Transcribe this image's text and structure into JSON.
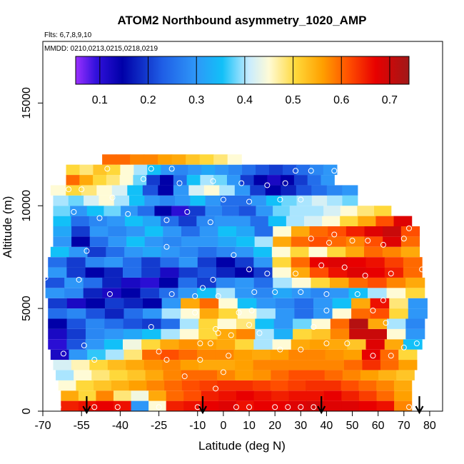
{
  "chart_data": {
    "type": "heatmap",
    "title": "ATOM2 Northbound asymmetry_1020_AMP",
    "flights_label": "Flts: 6,7,8,9,10",
    "dates_label": "MMDD: 0210,0213,0215,0218,0219",
    "xlabel": "Latitude (deg N)",
    "ylabel": "Altitude (m)",
    "xlim": [
      -70,
      85
    ],
    "ylim": [
      0,
      18000
    ],
    "x_ticks": [
      -70,
      -55,
      -40,
      -25,
      -10,
      0,
      10,
      20,
      30,
      40,
      50,
      60,
      70,
      80
    ],
    "x_tick_labels": [
      "-70",
      "-55",
      "-40",
      "-25",
      "-10",
      "0",
      "10",
      "20",
      "30",
      "40",
      "50",
      "60",
      "70",
      "80"
    ],
    "y_ticks": [
      0,
      5000,
      10000,
      15000
    ],
    "y_tick_labels": [
      "0",
      "5000",
      "10000",
      "15000"
    ],
    "colorbar": {
      "range": [
        0.05,
        0.74
      ],
      "ticks": [
        0.1,
        0.2,
        0.3,
        0.4,
        0.5,
        0.6,
        0.7
      ],
      "tick_labels": [
        "0.1",
        "0.2",
        "0.3",
        "0.4",
        "0.5",
        "0.6",
        "0.7"
      ]
    },
    "arrows_lat": [
      -53,
      -8,
      38,
      76
    ],
    "rows": [
      {
        "alt": 250,
        "lat_min": -63,
        "lat_max": 73,
        "values": [
          0.65,
          0.66,
          0.67,
          0.66,
          0.3,
          0.45,
          0.65,
          0.66,
          0.67,
          0.68,
          0.66,
          0.67,
          0.67,
          0.68,
          0.69,
          0.68,
          0.68,
          0.67,
          0.66,
          0.58
        ]
      },
      {
        "alt": 750,
        "lat_min": -63,
        "lat_max": 73,
        "values": [
          0.55,
          0.5,
          0.58,
          0.48,
          0.44,
          0.55,
          0.6,
          0.62,
          0.65,
          0.66,
          0.67,
          0.66,
          0.65,
          0.66,
          0.66,
          0.67,
          0.65,
          0.63,
          0.6,
          0.56
        ]
      },
      {
        "alt": 1250,
        "lat_min": -64,
        "lat_max": 73,
        "values": [
          0.45,
          0.5,
          0.52,
          0.54,
          0.56,
          0.58,
          0.6,
          0.62,
          0.63,
          0.64,
          0.64,
          0.63,
          0.62,
          0.63,
          0.64,
          0.64,
          0.62,
          0.6,
          0.58,
          0.55
        ]
      },
      {
        "alt": 1750,
        "lat_min": -65,
        "lat_max": 74,
        "values": [
          0.4,
          0.45,
          0.48,
          0.5,
          0.52,
          0.55,
          0.58,
          0.6,
          0.6,
          0.58,
          0.56,
          0.57,
          0.6,
          0.62,
          0.62,
          0.6,
          0.58,
          0.56,
          0.54,
          0.52
        ]
      },
      {
        "alt": 2250,
        "lat_min": -66,
        "lat_max": 75,
        "values": [
          0.42,
          0.46,
          0.5,
          0.53,
          0.55,
          0.57,
          0.58,
          0.56,
          0.55,
          0.55,
          0.56,
          0.58,
          0.58,
          0.58,
          0.58,
          0.58,
          0.6,
          0.64,
          0.6,
          0.56
        ]
      },
      {
        "alt": 2750,
        "lat_min": -67,
        "lat_max": 75,
        "values": [
          0.12,
          0.3,
          0.36,
          0.4,
          0.48,
          0.6,
          0.62,
          0.6,
          0.58,
          0.58,
          0.56,
          0.55,
          0.56,
          0.58,
          0.58,
          0.57,
          0.56,
          0.67,
          0.6,
          0.5
        ]
      },
      {
        "alt": 3250,
        "lat_min": -68,
        "lat_max": 77,
        "values": [
          0.1,
          0.22,
          0.3,
          0.35,
          0.44,
          0.5,
          0.55,
          0.57,
          0.56,
          0.55,
          0.5,
          0.4,
          0.45,
          0.55,
          0.56,
          0.55,
          0.52,
          0.68,
          0.55,
          0.35
        ]
      },
      {
        "alt": 3750,
        "lat_min": -68,
        "lat_max": 78,
        "values": [
          0.12,
          0.2,
          0.28,
          0.3,
          0.32,
          0.35,
          0.4,
          0.45,
          0.5,
          0.55,
          0.58,
          0.4,
          0.33,
          0.5,
          0.52,
          0.58,
          0.7,
          0.7,
          0.45,
          0.3
        ]
      },
      {
        "alt": 4250,
        "lat_min": -68,
        "lat_max": 78,
        "values": [
          0.15,
          0.22,
          0.28,
          0.25,
          0.22,
          0.2,
          0.25,
          0.4,
          0.5,
          0.45,
          0.48,
          0.35,
          0.3,
          0.38,
          0.45,
          0.6,
          0.72,
          0.55,
          0.4,
          0.28
        ]
      },
      {
        "alt": 4750,
        "lat_min": -68,
        "lat_max": 79,
        "values": [
          0.25,
          0.28,
          0.22,
          0.18,
          0.25,
          0.3,
          0.4,
          0.45,
          0.55,
          0.5,
          0.45,
          0.4,
          0.3,
          0.25,
          0.3,
          0.45,
          0.6,
          0.62,
          0.5,
          0.3
        ]
      },
      {
        "alt": 5250,
        "lat_min": -68,
        "lat_max": 79,
        "values": [
          0.2,
          0.12,
          0.15,
          0.2,
          0.18,
          0.15,
          0.3,
          0.55,
          0.6,
          0.45,
          0.35,
          0.3,
          0.28,
          0.25,
          0.3,
          0.35,
          0.55,
          0.66,
          0.48,
          0.3
        ]
      },
      {
        "alt": 5750,
        "lat_min": -69,
        "lat_max": 78,
        "values": [
          0.3,
          0.28,
          0.18,
          0.12,
          0.15,
          0.2,
          0.25,
          0.3,
          0.35,
          0.4,
          0.3,
          0.28,
          0.32,
          0.3,
          0.28,
          0.3,
          0.35,
          0.4,
          0.45,
          0.5
        ]
      },
      {
        "alt": 6250,
        "lat_min": -69,
        "lat_max": 78,
        "values": [
          0.22,
          0.3,
          0.25,
          0.18,
          0.12,
          0.1,
          0.15,
          0.25,
          0.2,
          0.28,
          0.3,
          0.25,
          0.4,
          0.45,
          0.5,
          0.55,
          0.6,
          0.62,
          0.58,
          0.55
        ]
      },
      {
        "alt": 6750,
        "lat_min": -68,
        "lat_max": 77,
        "values": [
          0.3,
          0.2,
          0.15,
          0.18,
          0.25,
          0.2,
          0.12,
          0.2,
          0.22,
          0.18,
          0.15,
          0.2,
          0.45,
          0.55,
          0.62,
          0.66,
          0.68,
          0.67,
          0.65,
          0.6
        ]
      },
      {
        "alt": 7250,
        "lat_min": -68,
        "lat_max": 77,
        "values": [
          0.25,
          0.2,
          0.28,
          0.3,
          0.25,
          0.2,
          0.25,
          0.3,
          0.2,
          0.15,
          0.2,
          0.3,
          0.5,
          0.6,
          0.67,
          0.68,
          0.67,
          0.66,
          0.63,
          0.6
        ]
      },
      {
        "alt": 7750,
        "lat_min": -67,
        "lat_max": 76,
        "values": [
          0.35,
          0.3,
          0.2,
          0.25,
          0.3,
          0.32,
          0.3,
          0.28,
          0.25,
          0.28,
          0.3,
          0.35,
          0.45,
          0.5,
          0.45,
          0.5,
          0.55,
          0.6,
          0.58,
          0.55
        ]
      },
      {
        "alt": 8250,
        "lat_min": -66,
        "lat_max": 76,
        "values": [
          0.3,
          0.15,
          0.25,
          0.3,
          0.35,
          0.3,
          0.28,
          0.3,
          0.3,
          0.32,
          0.35,
          0.4,
          0.55,
          0.6,
          0.62,
          0.6,
          0.58,
          0.62,
          0.68,
          0.6
        ]
      },
      {
        "alt": 8750,
        "lat_min": -66,
        "lat_max": 76,
        "values": [
          0.32,
          0.2,
          0.3,
          0.28,
          0.3,
          0.35,
          0.3,
          0.25,
          0.3,
          0.35,
          0.32,
          0.25,
          0.45,
          0.55,
          0.6,
          0.62,
          0.65,
          0.68,
          0.7,
          0.62
        ]
      },
      {
        "alt": 9250,
        "lat_min": -66,
        "lat_max": 73,
        "values": [
          0.35,
          0.25,
          0.28,
          0.3,
          0.35,
          0.32,
          0.25,
          0.2,
          0.28,
          0.3,
          0.3,
          0.25,
          0.35,
          0.4,
          0.42,
          0.45,
          0.5,
          0.55,
          0.62,
          0.68
        ]
      },
      {
        "alt": 9750,
        "lat_min": -66,
        "lat_max": 65,
        "values": [
          0.38,
          0.3,
          0.35,
          0.38,
          0.3,
          0.25,
          0.15,
          0.1,
          0.2,
          0.28,
          0.25,
          0.22,
          0.3,
          0.38,
          0.4,
          0.4,
          0.42,
          0.45,
          0.48,
          0.5
        ]
      },
      {
        "alt": 10250,
        "lat_min": -66,
        "lat_max": 52,
        "values": [
          0.4,
          0.38,
          0.42,
          0.45,
          0.4,
          0.35,
          0.3,
          0.28,
          0.3,
          0.35,
          0.3,
          0.25,
          0.25,
          0.3,
          0.35,
          0.38,
          0.4,
          0.42,
          0.4,
          0.38
        ]
      },
      {
        "alt": 10750,
        "lat_min": -67,
        "lat_max": 52,
        "values": [
          0.45,
          0.5,
          0.48,
          0.45,
          0.42,
          0.35,
          0.22,
          0.15,
          0.3,
          0.42,
          0.45,
          0.4,
          0.3,
          0.2,
          0.15,
          0.18,
          0.22,
          0.25,
          0.28,
          0.3
        ]
      },
      {
        "alt": 11250,
        "lat_min": -61,
        "lat_max": 43,
        "values": [
          0.6,
          0.55,
          0.5,
          0.48,
          0.45,
          0.38,
          0.2,
          0.15,
          0.25,
          0.35,
          0.4,
          0.38,
          0.3,
          0.2,
          0.15,
          0.12,
          0.15,
          0.2,
          0.25,
          0.3
        ]
      },
      {
        "alt": 11750,
        "lat_min": -61,
        "lat_max": 44,
        "values": [
          0.5,
          0.48,
          0.52,
          0.5,
          0.45,
          0.4,
          0.35,
          0.3,
          0.28,
          0.3,
          0.32,
          0.3,
          0.28,
          0.25,
          0.22,
          0.2,
          0.22,
          0.25,
          0.28,
          0.3
        ]
      },
      {
        "alt": 12250,
        "lat_min": -47,
        "lat_max": 7,
        "values": [
          0.6,
          0.6,
          0.58,
          0.58,
          0.56,
          0.55,
          0.52,
          0.5,
          0.48,
          0.45
        ]
      }
    ],
    "points": [
      [
        -64,
        200
      ],
      [
        -50,
        200
      ],
      [
        -41,
        200
      ],
      [
        -25,
        200
      ],
      [
        -10,
        200
      ],
      [
        5,
        200
      ],
      [
        10,
        200
      ],
      [
        20,
        200
      ],
      [
        25,
        200
      ],
      [
        30,
        200
      ],
      [
        35,
        200
      ],
      [
        72,
        200
      ],
      [
        -3,
        1100
      ],
      [
        -15,
        1700
      ],
      [
        0,
        1900
      ],
      [
        -50,
        2500
      ],
      [
        -22,
        2500
      ],
      [
        2,
        2700
      ],
      [
        -9,
        2500
      ],
      [
        -2,
        3800
      ],
      [
        -62,
        2800
      ],
      [
        -69,
        2800
      ],
      [
        -25,
        2900
      ],
      [
        -5,
        3300
      ],
      [
        -9,
        3300
      ],
      [
        3,
        3700
      ],
      [
        10,
        4200
      ],
      [
        14,
        3800
      ],
      [
        22,
        3000
      ],
      [
        30,
        3000
      ],
      [
        40,
        3300
      ],
      [
        48,
        3300
      ],
      [
        58,
        2700
      ],
      [
        65,
        2700
      ],
      [
        70,
        3100
      ],
      [
        75,
        3300
      ],
      [
        82,
        4200
      ],
      [
        -54,
        3200
      ],
      [
        -28,
        4100
      ],
      [
        -11,
        4800
      ],
      [
        -3,
        4000
      ],
      [
        6,
        4800
      ],
      [
        11,
        4900
      ],
      [
        35,
        4100
      ],
      [
        40,
        4900
      ],
      [
        58,
        4900
      ],
      [
        63,
        4300
      ],
      [
        -44,
        5700
      ],
      [
        -20,
        5700
      ],
      [
        -8,
        6000
      ],
      [
        -2,
        5600
      ],
      [
        -11,
        5600
      ],
      [
        -4,
        6400
      ],
      [
        12,
        5800
      ],
      [
        20,
        5800
      ],
      [
        30,
        5800
      ],
      [
        40,
        5700
      ],
      [
        52,
        5700
      ],
      [
        62,
        5400
      ],
      [
        -56,
        6400
      ],
      [
        -69,
        6500
      ],
      [
        -53,
        7800
      ],
      [
        -22,
        8000
      ],
      [
        -5,
        9200
      ],
      [
        4,
        7600
      ],
      [
        10,
        6900
      ],
      [
        17,
        6700
      ],
      [
        28,
        6700
      ],
      [
        38,
        7100
      ],
      [
        47,
        7000
      ],
      [
        55,
        6600
      ],
      [
        65,
        6700
      ],
      [
        77,
        6900
      ],
      [
        -48,
        9400
      ],
      [
        -37,
        9600
      ],
      [
        -14,
        9700
      ],
      [
        -58,
        9700
      ],
      [
        -43,
        10400
      ],
      [
        -60,
        10800
      ],
      [
        0,
        10300
      ],
      [
        10,
        10200
      ],
      [
        22,
        10300
      ],
      [
        30,
        10300
      ],
      [
        34,
        8400
      ],
      [
        43,
        8600
      ],
      [
        50,
        8300
      ],
      [
        56,
        8300
      ],
      [
        62,
        8100
      ],
      [
        70,
        8400
      ],
      [
        72,
        8900
      ],
      [
        78,
        8600
      ],
      [
        -55,
        10800
      ],
      [
        -45,
        11800
      ],
      [
        -31,
        11300
      ],
      [
        -20,
        11800
      ],
      [
        -28,
        11800
      ],
      [
        -17,
        11100
      ],
      [
        -4,
        11200
      ],
      [
        7,
        11100
      ],
      [
        17,
        11000
      ],
      [
        24,
        11100
      ],
      [
        34,
        11700
      ],
      [
        43,
        11700
      ],
      [
        28,
        11700
      ],
      [
        -70,
        11800
      ],
      [
        -22,
        9300
      ],
      [
        41,
        8200
      ]
    ]
  }
}
